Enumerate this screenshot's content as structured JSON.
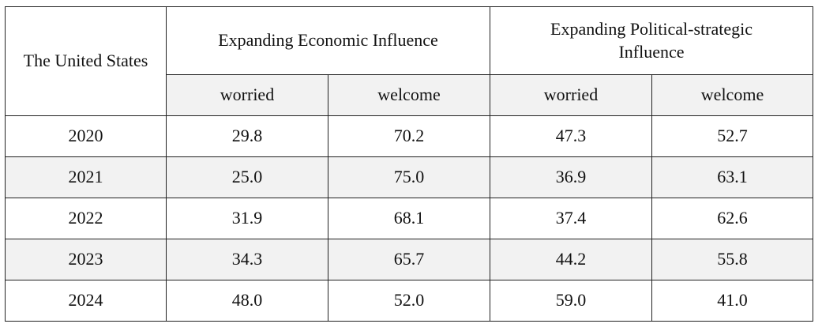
{
  "table": {
    "corner_label": "The United States",
    "groups": [
      {
        "label": "Expanding Economic Influence"
      },
      {
        "label": "Expanding Political-strategic Influence"
      }
    ],
    "subheaders": [
      "worried",
      "welcome",
      "worried",
      "welcome"
    ],
    "rows": [
      {
        "year": "2020",
        "values": [
          "29.8",
          "70.2",
          "47.3",
          "52.7"
        ]
      },
      {
        "year": "2021",
        "values": [
          "25.0",
          "75.0",
          "36.9",
          "63.1"
        ]
      },
      {
        "year": "2022",
        "values": [
          "31.9",
          "68.1",
          "37.4",
          "62.6"
        ]
      },
      {
        "year": "2023",
        "values": [
          "34.3",
          "65.7",
          "44.2",
          "55.8"
        ]
      },
      {
        "year": "2024",
        "values": [
          "48.0",
          "52.0",
          "59.0",
          "41.0"
        ]
      }
    ]
  }
}
